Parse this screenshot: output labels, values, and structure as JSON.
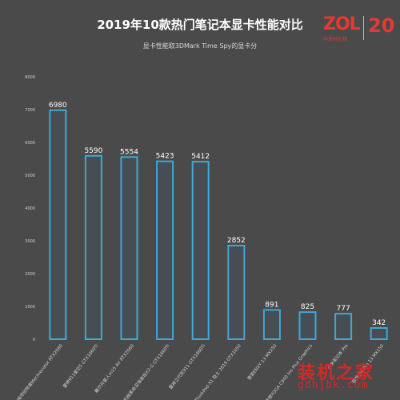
{
  "chart_data": {
    "type": "bar",
    "title": "2019年10款热门笔记本显卡性能对比",
    "subtitle": "显卡性能取3DMark Time Spy的显卡分",
    "xlabel": "",
    "ylabel": "",
    "ylim": [
      0,
      8000
    ],
    "yticks": [
      0,
      1000,
      2000,
      3000,
      4000,
      5000,
      6000,
      7000,
      8000
    ],
    "grid": false,
    "categories": [
      "机械师创物者Mechrevator RTX2080",
      "雷神911星空5 GTX1660Ti",
      "戴尔外星人m15 Air RTX2060",
      "机械革命深海泰坦X2-G GTX1660Ti",
      "雷神之代凯911 GTX1660Ti",
      "ThinkPad X1 隐士 2019 GTX1650",
      "惠普ENVY 13 MX250",
      "联想YOGA C940 Iris Plus Graphics",
      "小米笔记本 Pro",
      "联想小新Pro 13 MX150"
    ],
    "values": [
      6980,
      5590,
      5554,
      5423,
      5412,
      2852,
      891,
      825,
      777,
      342
    ],
    "colors": {
      "bar_stroke": "#3da9d6",
      "bar_fill": "#474d52",
      "value_label": "#ffffff",
      "tick_label": "#cfcfcf",
      "background": "#4a4a4a"
    }
  },
  "branding": {
    "logo_text": "ZOL",
    "logo_subtext": "中关村在线",
    "anniversary": "20"
  },
  "watermark": {
    "text": "装机之家",
    "url": "gdhjbk.com"
  }
}
